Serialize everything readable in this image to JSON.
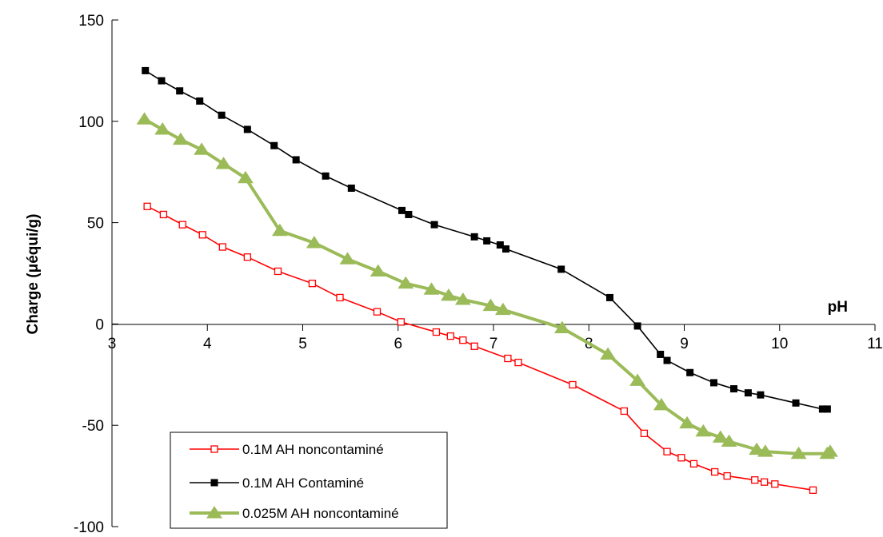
{
  "chart_data": {
    "type": "line",
    "title": "",
    "xlabel": "pH",
    "ylabel": "Charge (μéqui/g)",
    "xlim": [
      3,
      11
    ],
    "ylim": [
      -100,
      150
    ],
    "xticks": [
      3,
      4,
      5,
      6,
      7,
      8,
      9,
      10,
      11
    ],
    "yticks": [
      -100,
      -50,
      0,
      50,
      100,
      150
    ],
    "grid": false,
    "legend_position": "bottom-left",
    "series": [
      {
        "name": "0.1M AH noncontaminé",
        "color": "#ff0000",
        "marker": "open-square",
        "x": [
          3.37,
          3.54,
          3.74,
          3.95,
          4.16,
          4.42,
          4.74,
          5.1,
          5.39,
          5.78,
          6.03,
          6.4,
          6.55,
          6.68,
          6.8,
          7.15,
          7.26,
          7.83,
          8.37,
          8.58,
          8.82,
          8.97,
          9.1,
          9.32,
          9.45,
          9.74,
          9.84,
          9.95,
          10.35
        ],
        "y": [
          58,
          54,
          49,
          44,
          38,
          33,
          26,
          20,
          13,
          6,
          1,
          -4,
          -6,
          -8,
          -11,
          -17,
          -19,
          -30,
          -43,
          -54,
          -63,
          -66,
          -69,
          -73,
          -75,
          -77,
          -78,
          -79,
          -82
        ]
      },
      {
        "name": "0.1M AH Contaminé",
        "color": "#000000",
        "marker": "filled-square",
        "x": [
          3.35,
          3.52,
          3.71,
          3.92,
          4.15,
          4.42,
          4.7,
          4.93,
          5.24,
          5.51,
          6.04,
          6.11,
          6.38,
          6.8,
          6.93,
          7.07,
          7.13,
          7.71,
          8.22,
          8.51,
          8.75,
          8.82,
          9.06,
          9.31,
          9.52,
          9.67,
          9.8,
          10.17,
          10.45,
          10.5
        ],
        "y": [
          125,
          120,
          115,
          110,
          103,
          96,
          88,
          81,
          73,
          67,
          56,
          54,
          49,
          43,
          41,
          39,
          37,
          27,
          13,
          -1,
          -15,
          -18,
          -24,
          -29,
          -32,
          -34,
          -35,
          -39,
          -42,
          -42
        ]
      },
      {
        "name": "0.025M AH noncontaminé",
        "color": "#9bbb59",
        "marker": "triangle",
        "x": [
          3.34,
          3.53,
          3.72,
          3.94,
          4.17,
          4.4,
          4.76,
          5.12,
          5.47,
          5.79,
          6.08,
          6.35,
          6.53,
          6.68,
          6.97,
          7.1,
          7.72,
          8.2,
          8.51,
          8.76,
          9.03,
          9.2,
          9.38,
          9.47,
          9.76,
          9.85,
          10.2,
          10.5,
          10.53
        ],
        "y": [
          101,
          96,
          91,
          86,
          79,
          72,
          46,
          40,
          32,
          26,
          20,
          17,
          14,
          12,
          9,
          7,
          -2,
          -15,
          -28,
          -40,
          -49,
          -53,
          -56,
          -58,
          -62,
          -63,
          -64,
          -64,
          -63
        ]
      }
    ]
  }
}
